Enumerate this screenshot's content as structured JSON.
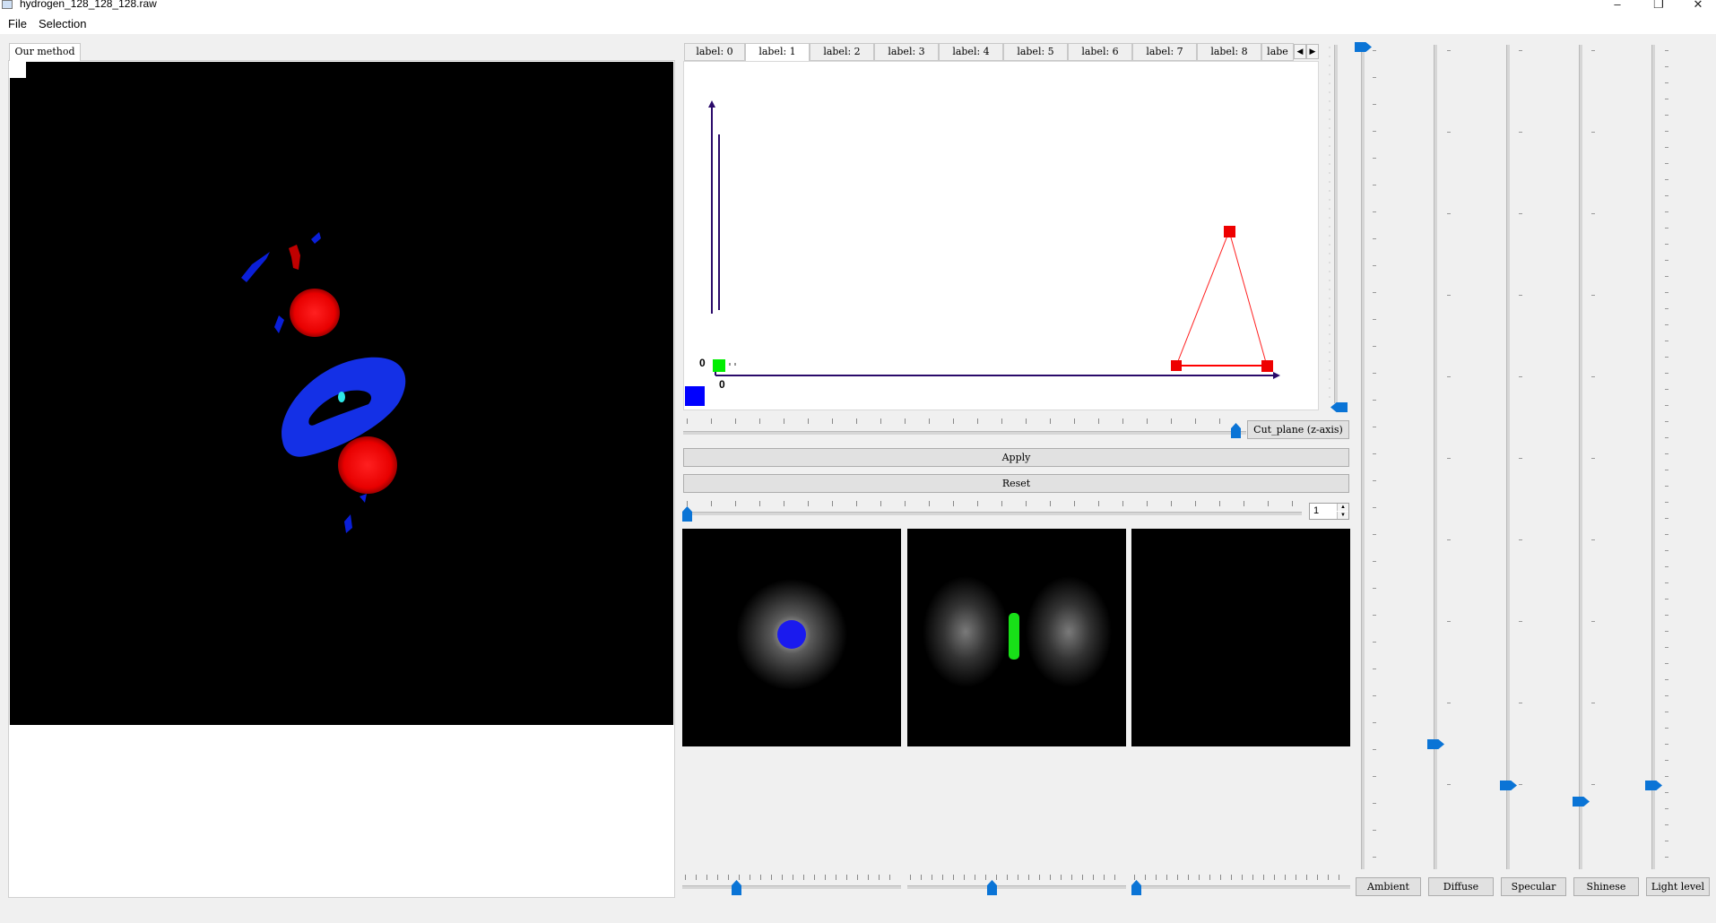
{
  "window": {
    "title": "hydrogen_128_128_128.raw",
    "minimize_glyph": "–",
    "restore_glyph": "❐",
    "close_glyph": "✕"
  },
  "menu": {
    "items": [
      "File",
      "Selection"
    ]
  },
  "left_panel": {
    "tab_label": "Our method"
  },
  "label_tabs": {
    "tabs": [
      "label: 0",
      "label: 1",
      "label: 2",
      "label: 3",
      "label: 4",
      "label: 5",
      "label: 6",
      "label: 7",
      "label: 8",
      "labe"
    ],
    "active_index": 1,
    "scroll_left_glyph": "◀",
    "scroll_right_glyph": "▶"
  },
  "transfer_function": {
    "x_origin_label": "0",
    "y_origin_label": "0",
    "colors": {
      "axis": "#2a0a6a",
      "ramp_start": "#00ff00",
      "ramp_end": "#ff0000",
      "swatch": "#0000ff"
    }
  },
  "controls": {
    "cut_plane_label": "Cut_plane (z-axis)",
    "apply_label": "Apply",
    "reset_label": "Reset",
    "spin_value": "1"
  },
  "property_buttons": [
    "Ambient",
    "Diffuse",
    "Specular",
    "Shinese",
    "Light level"
  ],
  "theme": {
    "accent": "#0a74d6"
  }
}
